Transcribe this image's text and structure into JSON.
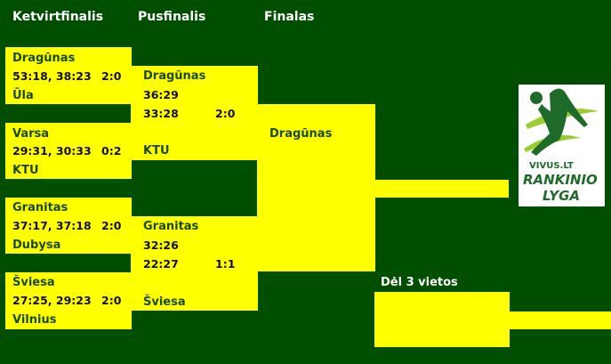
{
  "headers": {
    "qf": "Ketvirtfinalis",
    "sf": "Pusfinalis",
    "final": "Finalas",
    "third": "Dėl 3 vietos"
  },
  "quarterfinals": [
    {
      "team1": "Dragūnas",
      "scores": "53:18, 38:23",
      "series": "2:0",
      "team2": "Ūla"
    },
    {
      "team1": "Varsa",
      "scores": "29:31, 30:33",
      "series": "0:2",
      "team2": "KTU"
    },
    {
      "team1": "Granitas",
      "scores": "37:17, 37:18",
      "series": "2:0",
      "team2": "Dubysa"
    },
    {
      "team1": "Šviesa",
      "scores": "27:25, 29:23",
      "series": "2:0",
      "team2": "Vilnius"
    }
  ],
  "semifinals": [
    {
      "team1": "Dragūnas",
      "score1": "36:29",
      "score2": "33:28",
      "series": "2:0",
      "team2": "KTU"
    },
    {
      "team1": "Granitas",
      "score1": "32:26",
      "score2": "22:27",
      "series": "1:1",
      "team2": "Šviesa"
    }
  ],
  "final": {
    "team1": "Dragūnas"
  },
  "logo": {
    "brand": "VIVUS.LT",
    "line1": "RANKINIO",
    "line2": "LYGA"
  },
  "colors": {
    "background": "#004e00",
    "bracket": "#ffff00"
  }
}
